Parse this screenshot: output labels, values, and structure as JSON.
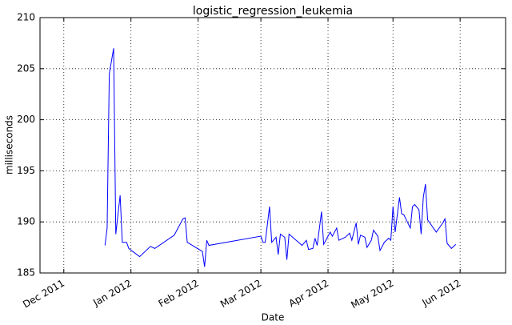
{
  "chart_data": {
    "type": "line",
    "title": "logistic_regression_leukemia",
    "x_label": "Date",
    "y_label": "milliseconds",
    "x": [
      "2011-12-20",
      "2011-12-21",
      "2011-12-22",
      "2011-12-24",
      "2011-12-25",
      "2011-12-27",
      "2011-12-28",
      "2011-12-30",
      "2011-12-31",
      "2012-01-05",
      "2012-01-10",
      "2012-01-12",
      "2012-01-21",
      "2012-01-25",
      "2012-01-26",
      "2012-01-27",
      "2012-02-03",
      "2012-02-04",
      "2012-02-05",
      "2012-02-06",
      "2012-03-01",
      "2012-03-02",
      "2012-03-03",
      "2012-03-05",
      "2012-03-06",
      "2012-03-08",
      "2012-03-09",
      "2012-03-10",
      "2012-03-12",
      "2012-03-13",
      "2012-03-14",
      "2012-03-20",
      "2012-03-22",
      "2012-03-23",
      "2012-03-25",
      "2012-03-26",
      "2012-03-27",
      "2012-03-29",
      "2012-03-30",
      "2012-03-31",
      "2012-04-02",
      "2012-04-03",
      "2012-04-05",
      "2012-04-06",
      "2012-04-09",
      "2012-04-11",
      "2012-04-12",
      "2012-04-14",
      "2012-04-15",
      "2012-04-16",
      "2012-04-18",
      "2012-04-19",
      "2012-04-21",
      "2012-04-22",
      "2012-04-24",
      "2012-04-25",
      "2012-04-27",
      "2012-04-29",
      "2012-04-30",
      "2012-05-01",
      "2012-05-02",
      "2012-05-04",
      "2012-05-05",
      "2012-05-06",
      "2012-05-09",
      "2012-05-10",
      "2012-05-11",
      "2012-05-13",
      "2012-05-14",
      "2012-05-15",
      "2012-05-16",
      "2012-05-17",
      "2012-05-21",
      "2012-05-24",
      "2012-05-25",
      "2012-05-26",
      "2012-05-28",
      "2012-05-30"
    ],
    "values": [
      187.7,
      189.4,
      204.5,
      207.0,
      188.8,
      192.6,
      188.0,
      188.0,
      187.4,
      186.6,
      187.6,
      187.4,
      188.7,
      190.3,
      190.4,
      188.0,
      187.1,
      185.6,
      188.2,
      187.7,
      188.6,
      188.0,
      188.0,
      191.5,
      188.0,
      188.5,
      186.8,
      188.8,
      188.5,
      186.3,
      188.8,
      187.7,
      188.2,
      187.3,
      187.4,
      188.4,
      187.7,
      191.0,
      187.8,
      188.2,
      189.0,
      188.6,
      189.4,
      188.2,
      188.5,
      188.9,
      188.2,
      189.9,
      187.8,
      188.7,
      188.5,
      187.5,
      188.2,
      189.2,
      188.6,
      187.2,
      188.0,
      188.4,
      188.2,
      191.5,
      189.0,
      192.4,
      190.8,
      190.7,
      189.4,
      191.5,
      191.7,
      191.2,
      188.8,
      192.4,
      193.7,
      190.2,
      189.0,
      189.9,
      190.3,
      187.9,
      187.4,
      187.8
    ],
    "color": "#0000ff",
    "xlim": [
      "2011-11-20",
      "2012-06-22"
    ],
    "xticks": [
      {
        "value": "2011-12-01",
        "label": "Dec 2011"
      },
      {
        "value": "2012-01-01",
        "label": "Jan 2012"
      },
      {
        "value": "2012-02-01",
        "label": "Feb 2012"
      },
      {
        "value": "2012-03-01",
        "label": "Mar 2012"
      },
      {
        "value": "2012-04-01",
        "label": "Apr 2012"
      },
      {
        "value": "2012-05-01",
        "label": "May 2012"
      },
      {
        "value": "2012-06-01",
        "label": "Jun 2012"
      }
    ],
    "ylim": [
      185,
      210
    ],
    "yticks": [
      185,
      190,
      195,
      200,
      205,
      210
    ],
    "grid": true
  }
}
